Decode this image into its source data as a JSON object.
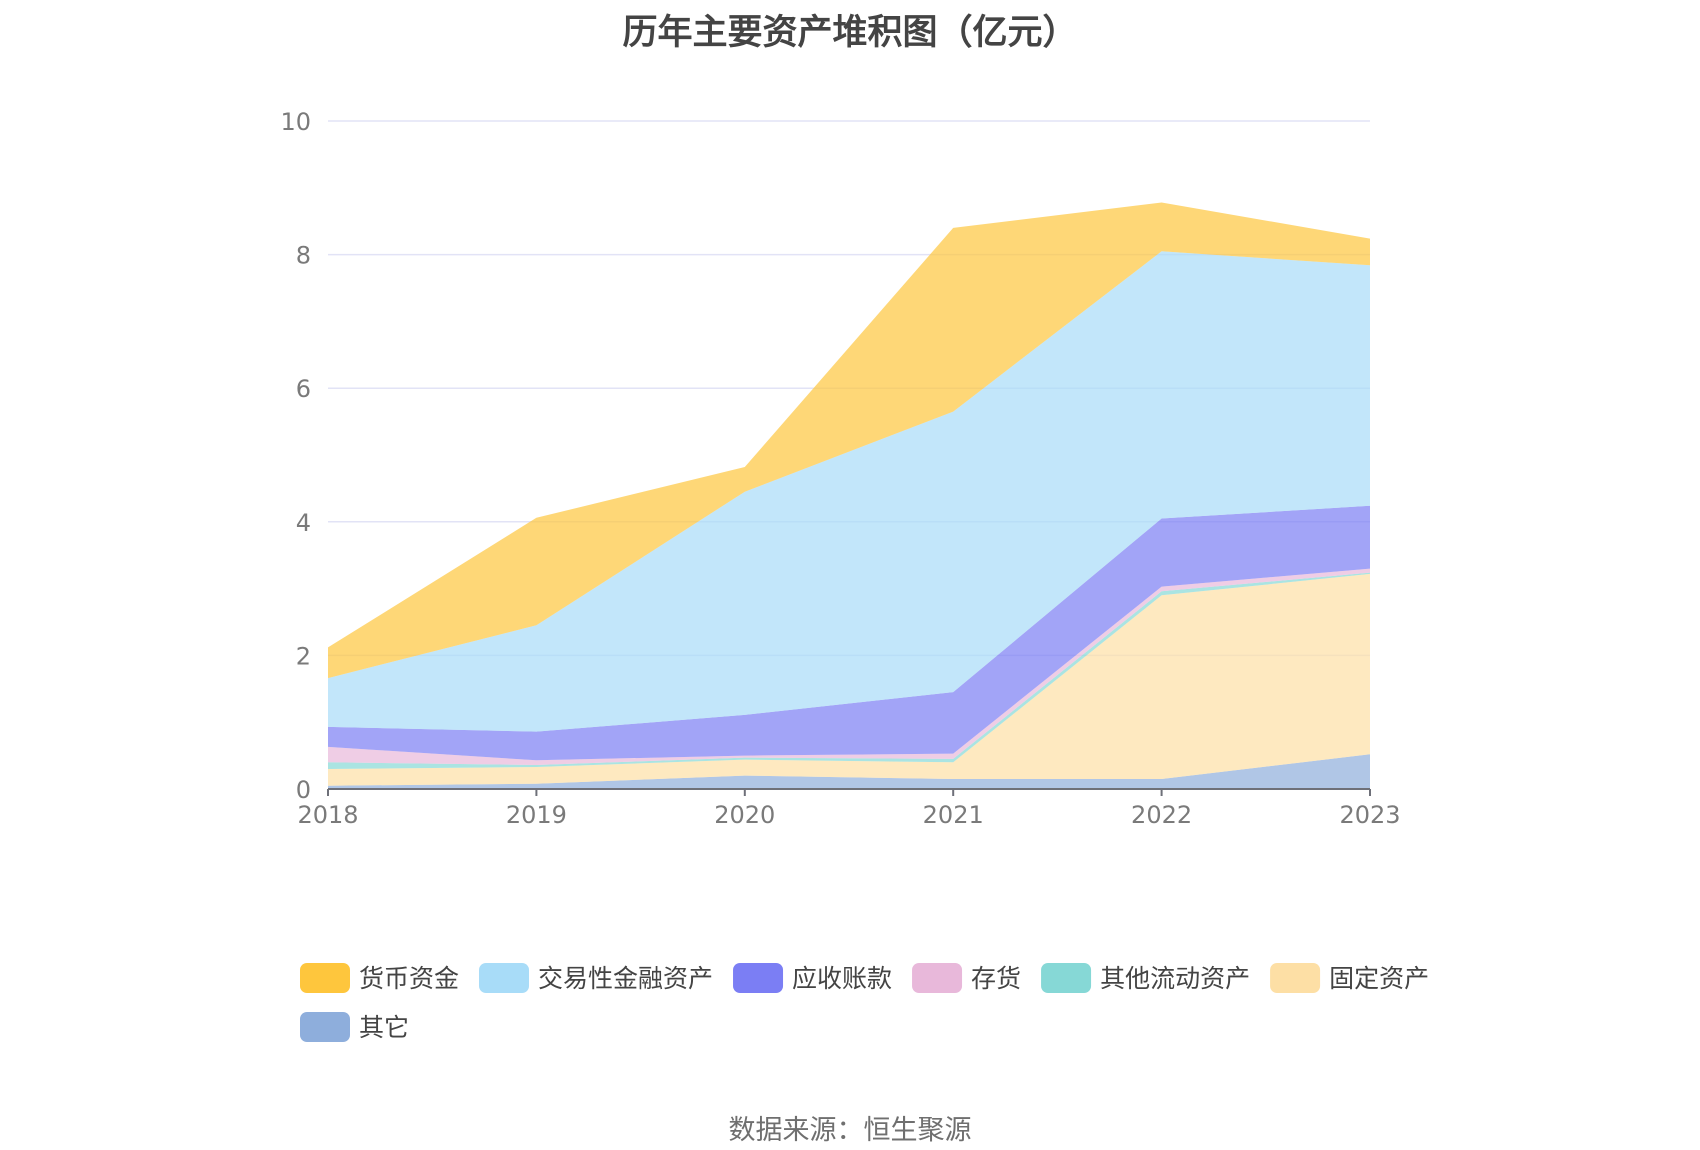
{
  "chart_data": {
    "type": "area",
    "stacked": true,
    "title": "历年主要资产堆积图（亿元）",
    "x": [
      "2018",
      "2019",
      "2020",
      "2021",
      "2022",
      "2023"
    ],
    "ylim": [
      0,
      10
    ],
    "yticks": [
      0,
      2,
      4,
      6,
      8,
      10
    ],
    "grid": true,
    "legend_position": "bottom",
    "series": [
      {
        "name": "其它",
        "color": "#8eaedc",
        "values": [
          0.05,
          0.08,
          0.2,
          0.15,
          0.15,
          0.52
        ]
      },
      {
        "name": "固定资产",
        "color": "#fddfa5",
        "values": [
          0.25,
          0.25,
          0.24,
          0.25,
          2.75,
          2.7
        ]
      },
      {
        "name": "其他流动资产",
        "color": "#86d8d6",
        "values": [
          0.1,
          0.03,
          0.03,
          0.05,
          0.06,
          0.02
        ]
      },
      {
        "name": "存货",
        "color": "#e8b8da",
        "values": [
          0.23,
          0.07,
          0.03,
          0.08,
          0.07,
          0.06
        ]
      },
      {
        "name": "应收账款",
        "color": "#7b7ef4",
        "values": [
          0.3,
          0.43,
          0.61,
          0.92,
          1.02,
          0.94
        ]
      },
      {
        "name": "交易性金融资产",
        "color": "#a8dcf8",
        "values": [
          0.73,
          1.59,
          3.34,
          4.2,
          4.0,
          3.6
        ]
      },
      {
        "name": "货币资金",
        "color": "#fec63d",
        "values": [
          0.46,
          1.61,
          0.37,
          2.75,
          0.73,
          0.4
        ]
      }
    ]
  },
  "legend_order": [
    "货币资金",
    "交易性金融资产",
    "应收账款",
    "存货",
    "其他流动资产",
    "固定资产",
    "其它"
  ],
  "source": "数据来源：恒生聚源"
}
